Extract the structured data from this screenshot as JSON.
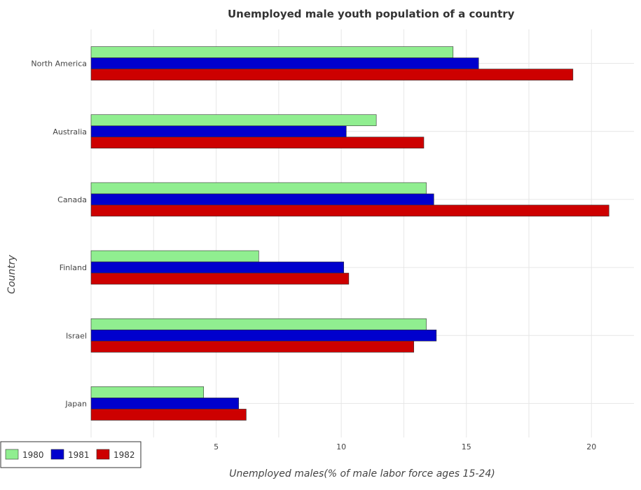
{
  "chart_data": {
    "type": "bar",
    "orientation": "horizontal",
    "title": "Unemployed male youth population of a country",
    "xlabel": "Unemployed males(% of male labor force ages 15-24)",
    "ylabel": "Country",
    "xlim": [
      0,
      21.7
    ],
    "xticks": [
      0,
      5,
      10,
      15,
      20
    ],
    "grid": true,
    "legend_position": "bottom-left",
    "categories": [
      "North America",
      "Australia",
      "Canada",
      "Finland",
      "Israel",
      "Japan"
    ],
    "series": [
      {
        "name": "1980",
        "color": "#90ee90",
        "values": [
          14.47,
          11.4,
          13.4,
          6.7,
          13.4,
          4.5
        ]
      },
      {
        "name": "1981",
        "color": "#0000cd",
        "values": [
          15.49,
          10.2,
          13.7,
          10.1,
          13.8,
          5.9
        ]
      },
      {
        "name": "1982",
        "color": "#cd0000",
        "values": [
          19.26,
          13.3,
          20.7,
          10.3,
          12.9,
          6.2
        ]
      }
    ]
  }
}
